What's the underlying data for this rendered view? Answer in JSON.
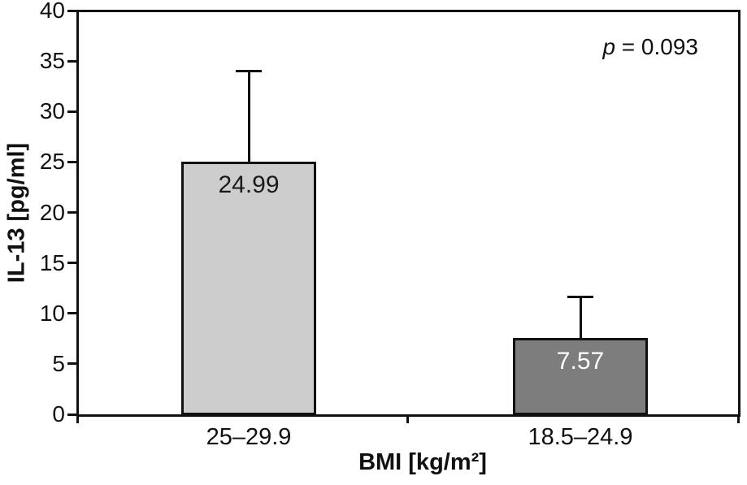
{
  "chart_data": {
    "type": "bar",
    "title": "",
    "xlabel": "BMI [kg/m²]",
    "ylabel": "IL-13 [pg/ml]",
    "categories": [
      "25–29.9",
      "18.5–24.9"
    ],
    "values": [
      24.99,
      7.57
    ],
    "value_labels": [
      "24.99",
      "7.57"
    ],
    "error_upper": [
      34.0,
      11.6
    ],
    "ylim": [
      0,
      40
    ],
    "yticks": [
      0,
      5,
      10,
      15,
      20,
      25,
      30,
      35,
      40
    ],
    "grid": false,
    "legend": "none",
    "annotation": {
      "italic": "p",
      "rest": " = 0.093"
    },
    "bar_colors": [
      "#cdcdcd",
      "#7d7d7d"
    ],
    "bar_label_colors": [
      "#1a1a1a",
      "#ffffff"
    ],
    "axis_color": "#111111",
    "background_color": "#ffffff"
  }
}
